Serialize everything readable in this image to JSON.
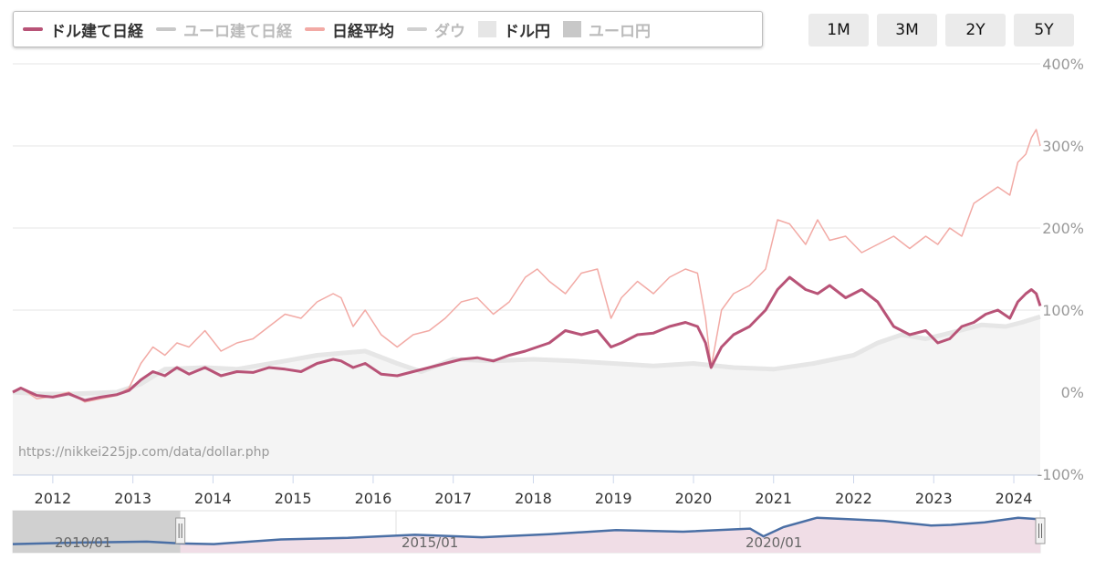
{
  "legend": {
    "items": [
      {
        "label": "ドル建て日経",
        "color": "#b85377",
        "kind": "line",
        "active": true
      },
      {
        "label": "ユーロ建て日経",
        "color": "#c8c8c8",
        "kind": "line",
        "active": false
      },
      {
        "label": "日経平均",
        "color": "#f2aaa5",
        "kind": "line",
        "active": true
      },
      {
        "label": "ダウ",
        "color": "#d0d0d0",
        "kind": "line",
        "active": false
      },
      {
        "label": "ドル円",
        "color": "#e6e6e6",
        "kind": "box",
        "active": true
      },
      {
        "label": "ユーロ円",
        "color": "#c8c8c8",
        "kind": "box",
        "active": false
      }
    ]
  },
  "range_buttons": [
    "1M",
    "3M",
    "2Y",
    "5Y"
  ],
  "source_note": "https://nikkei225jp.com/data/dollar.php",
  "navigator": {
    "labels": [
      "2010/01",
      "2015/01",
      "2020/01"
    ]
  },
  "chart_data": {
    "type": "line",
    "ylim": [
      -100,
      400
    ],
    "y_ticks": [
      400,
      300,
      200,
      100,
      0,
      -100
    ],
    "y_tick_labels": [
      "400%",
      "300%",
      "200%",
      "100%",
      "0%",
      "-100%"
    ],
    "x_range": [
      2011.5,
      2024.33
    ],
    "x_ticks": [
      2012,
      2013,
      2014,
      2015,
      2016,
      2017,
      2018,
      2019,
      2020,
      2021,
      2022,
      2023,
      2024
    ],
    "x_tick_labels": [
      "2012",
      "2013",
      "2014",
      "2015",
      "2016",
      "2017",
      "2018",
      "2019",
      "2020",
      "2021",
      "2022",
      "2023",
      "2024"
    ],
    "series": [
      {
        "name": "日経平均",
        "color": "#f2aaa5",
        "x": [
          2011.5,
          2011.6,
          2011.8,
          2012.0,
          2012.2,
          2012.4,
          2012.6,
          2012.8,
          2012.95,
          2013.1,
          2013.25,
          2013.4,
          2013.55,
          2013.7,
          2013.9,
          2014.1,
          2014.3,
          2014.5,
          2014.7,
          2014.9,
          2015.1,
          2015.3,
          2015.5,
          2015.6,
          2015.75,
          2015.9,
          2016.1,
          2016.3,
          2016.5,
          2016.7,
          2016.9,
          2017.1,
          2017.3,
          2017.5,
          2017.7,
          2017.9,
          2018.05,
          2018.2,
          2018.4,
          2018.6,
          2018.8,
          2018.97,
          2019.1,
          2019.3,
          2019.5,
          2019.7,
          2019.9,
          2020.05,
          2020.15,
          2020.22,
          2020.35,
          2020.5,
          2020.7,
          2020.9,
          2021.05,
          2021.2,
          2021.4,
          2021.55,
          2021.7,
          2021.9,
          2022.1,
          2022.3,
          2022.5,
          2022.7,
          2022.9,
          2023.05,
          2023.2,
          2023.35,
          2023.5,
          2023.65,
          2023.8,
          2023.95,
          2024.05,
          2024.15,
          2024.22,
          2024.28,
          2024.33
        ],
        "values": [
          0,
          5,
          -8,
          -5,
          0,
          -12,
          -8,
          -4,
          5,
          35,
          55,
          45,
          60,
          55,
          75,
          50,
          60,
          65,
          80,
          95,
          90,
          110,
          120,
          115,
          80,
          100,
          70,
          55,
          70,
          75,
          90,
          110,
          115,
          95,
          110,
          140,
          150,
          135,
          120,
          145,
          150,
          90,
          115,
          135,
          120,
          140,
          150,
          145,
          90,
          30,
          100,
          120,
          130,
          150,
          210,
          205,
          180,
          210,
          185,
          190,
          170,
          180,
          190,
          175,
          190,
          180,
          200,
          190,
          230,
          240,
          250,
          240,
          280,
          290,
          310,
          320,
          300
        ],
        "width": 1.5
      },
      {
        "name": "ドル建て日経",
        "color": "#b85377",
        "x": [
          2011.5,
          2011.6,
          2011.8,
          2012.0,
          2012.2,
          2012.4,
          2012.6,
          2012.8,
          2012.95,
          2013.1,
          2013.25,
          2013.4,
          2013.55,
          2013.7,
          2013.9,
          2014.1,
          2014.3,
          2014.5,
          2014.7,
          2014.9,
          2015.1,
          2015.3,
          2015.5,
          2015.6,
          2015.75,
          2015.9,
          2016.1,
          2016.3,
          2016.5,
          2016.7,
          2016.9,
          2017.1,
          2017.3,
          2017.5,
          2017.7,
          2017.9,
          2018.05,
          2018.2,
          2018.4,
          2018.6,
          2018.8,
          2018.97,
          2019.1,
          2019.3,
          2019.5,
          2019.7,
          2019.9,
          2020.05,
          2020.15,
          2020.22,
          2020.35,
          2020.5,
          2020.7,
          2020.9,
          2021.05,
          2021.2,
          2021.4,
          2021.55,
          2021.7,
          2021.9,
          2022.1,
          2022.3,
          2022.5,
          2022.7,
          2022.9,
          2023.05,
          2023.2,
          2023.35,
          2023.5,
          2023.65,
          2023.8,
          2023.95,
          2024.05,
          2024.15,
          2024.22,
          2024.28,
          2024.33
        ],
        "values": [
          0,
          5,
          -4,
          -6,
          -2,
          -10,
          -6,
          -3,
          2,
          15,
          25,
          20,
          30,
          22,
          30,
          20,
          25,
          24,
          30,
          28,
          25,
          35,
          40,
          38,
          30,
          35,
          22,
          20,
          25,
          30,
          35,
          40,
          42,
          38,
          45,
          50,
          55,
          60,
          75,
          70,
          75,
          55,
          60,
          70,
          72,
          80,
          85,
          80,
          60,
          30,
          55,
          70,
          80,
          100,
          125,
          140,
          125,
          120,
          130,
          115,
          125,
          110,
          80,
          70,
          75,
          60,
          65,
          80,
          85,
          95,
          100,
          90,
          110,
          120,
          125,
          120,
          105
        ],
        "width": 3
      }
    ],
    "areas": [
      {
        "name": "ドル円",
        "color": "#e6e6e6",
        "x": [
          2011.5,
          2012.0,
          2012.8,
          2013.1,
          2013.4,
          2013.9,
          2014.3,
          2014.9,
          2015.3,
          2015.9,
          2016.3,
          2016.6,
          2017.0,
          2017.5,
          2018.0,
          2018.5,
          2019.0,
          2019.5,
          2020.0,
          2020.5,
          2021.0,
          2021.5,
          2022.0,
          2022.3,
          2022.6,
          2022.9,
          2023.2,
          2023.6,
          2023.9,
          2024.1,
          2024.33
        ],
        "values": [
          0,
          -3,
          0,
          10,
          28,
          30,
          28,
          38,
          45,
          50,
          35,
          25,
          40,
          38,
          40,
          38,
          35,
          32,
          35,
          30,
          28,
          35,
          45,
          60,
          70,
          65,
          72,
          82,
          80,
          85,
          92
        ]
      }
    ]
  }
}
